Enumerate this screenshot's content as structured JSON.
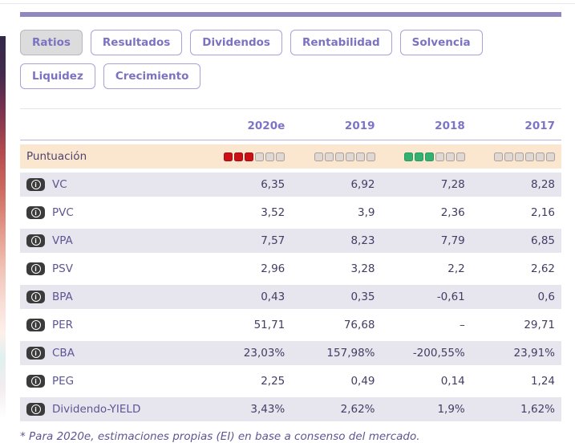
{
  "tabs": [
    {
      "label": "Ratios",
      "active": true
    },
    {
      "label": "Resultados",
      "active": false
    },
    {
      "label": "Dividendos",
      "active": false
    },
    {
      "label": "Rentabilidad",
      "active": false
    },
    {
      "label": "Solvencia",
      "active": false
    },
    {
      "label": "Liquidez",
      "active": false
    },
    {
      "label": "Crecimiento",
      "active": false
    }
  ],
  "table": {
    "columns": [
      "2020e",
      "2019",
      "2018",
      "2017"
    ],
    "score_row": {
      "label": "Puntuación",
      "scores": [
        {
          "filled": 3,
          "total": 6,
          "color": "red"
        },
        {
          "filled": 0,
          "total": 6,
          "color": "none"
        },
        {
          "filled": 3,
          "total": 6,
          "color": "green"
        },
        {
          "filled": 0,
          "total": 6,
          "color": "none"
        }
      ]
    },
    "rows": [
      {
        "label": "VC",
        "values": [
          "6,35",
          "6,92",
          "7,28",
          "8,28"
        ]
      },
      {
        "label": "PVC",
        "values": [
          "3,52",
          "3,9",
          "2,36",
          "2,16"
        ]
      },
      {
        "label": "VPA",
        "values": [
          "7,57",
          "8,23",
          "7,79",
          "6,85"
        ]
      },
      {
        "label": "PSV",
        "values": [
          "2,96",
          "3,28",
          "2,2",
          "2,62"
        ]
      },
      {
        "label": "BPA",
        "values": [
          "0,43",
          "0,35",
          "-0,61",
          "0,6"
        ]
      },
      {
        "label": "PER",
        "values": [
          "51,71",
          "76,68",
          "–",
          "29,71"
        ]
      },
      {
        "label": "CBA",
        "values": [
          "23,03%",
          "157,98%",
          "-200,55%",
          "23,91%"
        ]
      },
      {
        "label": "PEG",
        "values": [
          "2,25",
          "0,49",
          "0,14",
          "1,24"
        ]
      },
      {
        "label": "Dividendo-YIELD",
        "values": [
          "3,43%",
          "2,62%",
          "1,9%",
          "1,62%"
        ]
      }
    ]
  },
  "footnote": "* Para 2020e, estimaciones propias (EI) en base a consenso del mercado.",
  "icons": {
    "info_glyph": "i"
  },
  "colors": {
    "accent_bar": "#8f87c0",
    "tab_text": "#7b73c2",
    "active_tab_bg": "#dcdcdc",
    "header_text": "#7b74c8",
    "score_row_bg": "#fbe7d0",
    "shaded_row_bg": "#e7e6ee",
    "score_red": "#cb1117",
    "score_green": "#32b173",
    "score_empty": "#e0d8d3",
    "info_badge_bg": "#3b3b3b"
  }
}
